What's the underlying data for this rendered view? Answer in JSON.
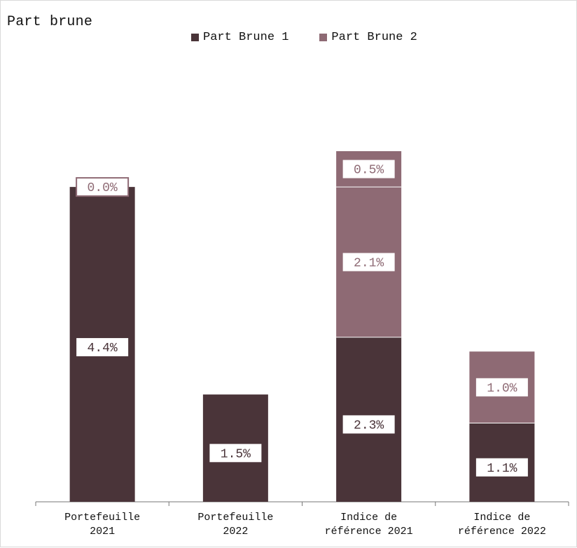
{
  "chart_data": {
    "type": "bar",
    "stacked": true,
    "title": "Part brune",
    "categories": [
      [
        "Portefeuille",
        "2021"
      ],
      [
        "Portefeuille",
        "2022"
      ],
      [
        "Indice de",
        "référence 2021"
      ],
      [
        "Indice de",
        "référence 2022"
      ]
    ],
    "series": [
      {
        "name": "Part Brune 1",
        "values": [
          4.4,
          1.5,
          2.3,
          1.1
        ],
        "labels": [
          "4.4%",
          "1.5%",
          "2.3%",
          "1.1%"
        ],
        "color": "#4a3439"
      },
      {
        "name": "Part Brune 2",
        "values": [
          0.0,
          null,
          2.1,
          1.0
        ],
        "labels": [
          "0.0%",
          null,
          "2.1%",
          "1.0%"
        ],
        "color": "#8e6a74"
      }
    ],
    "extra_labels": {
      "2": [
        "0.5%"
      ]
    },
    "label_text_color_top": "#8e6a74",
    "label_text_color_bottom": "#4a3439",
    "grid": false,
    "legend_position": "top",
    "ylim": [
      0,
      4.9
    ],
    "xlabel": "",
    "ylabel": ""
  }
}
